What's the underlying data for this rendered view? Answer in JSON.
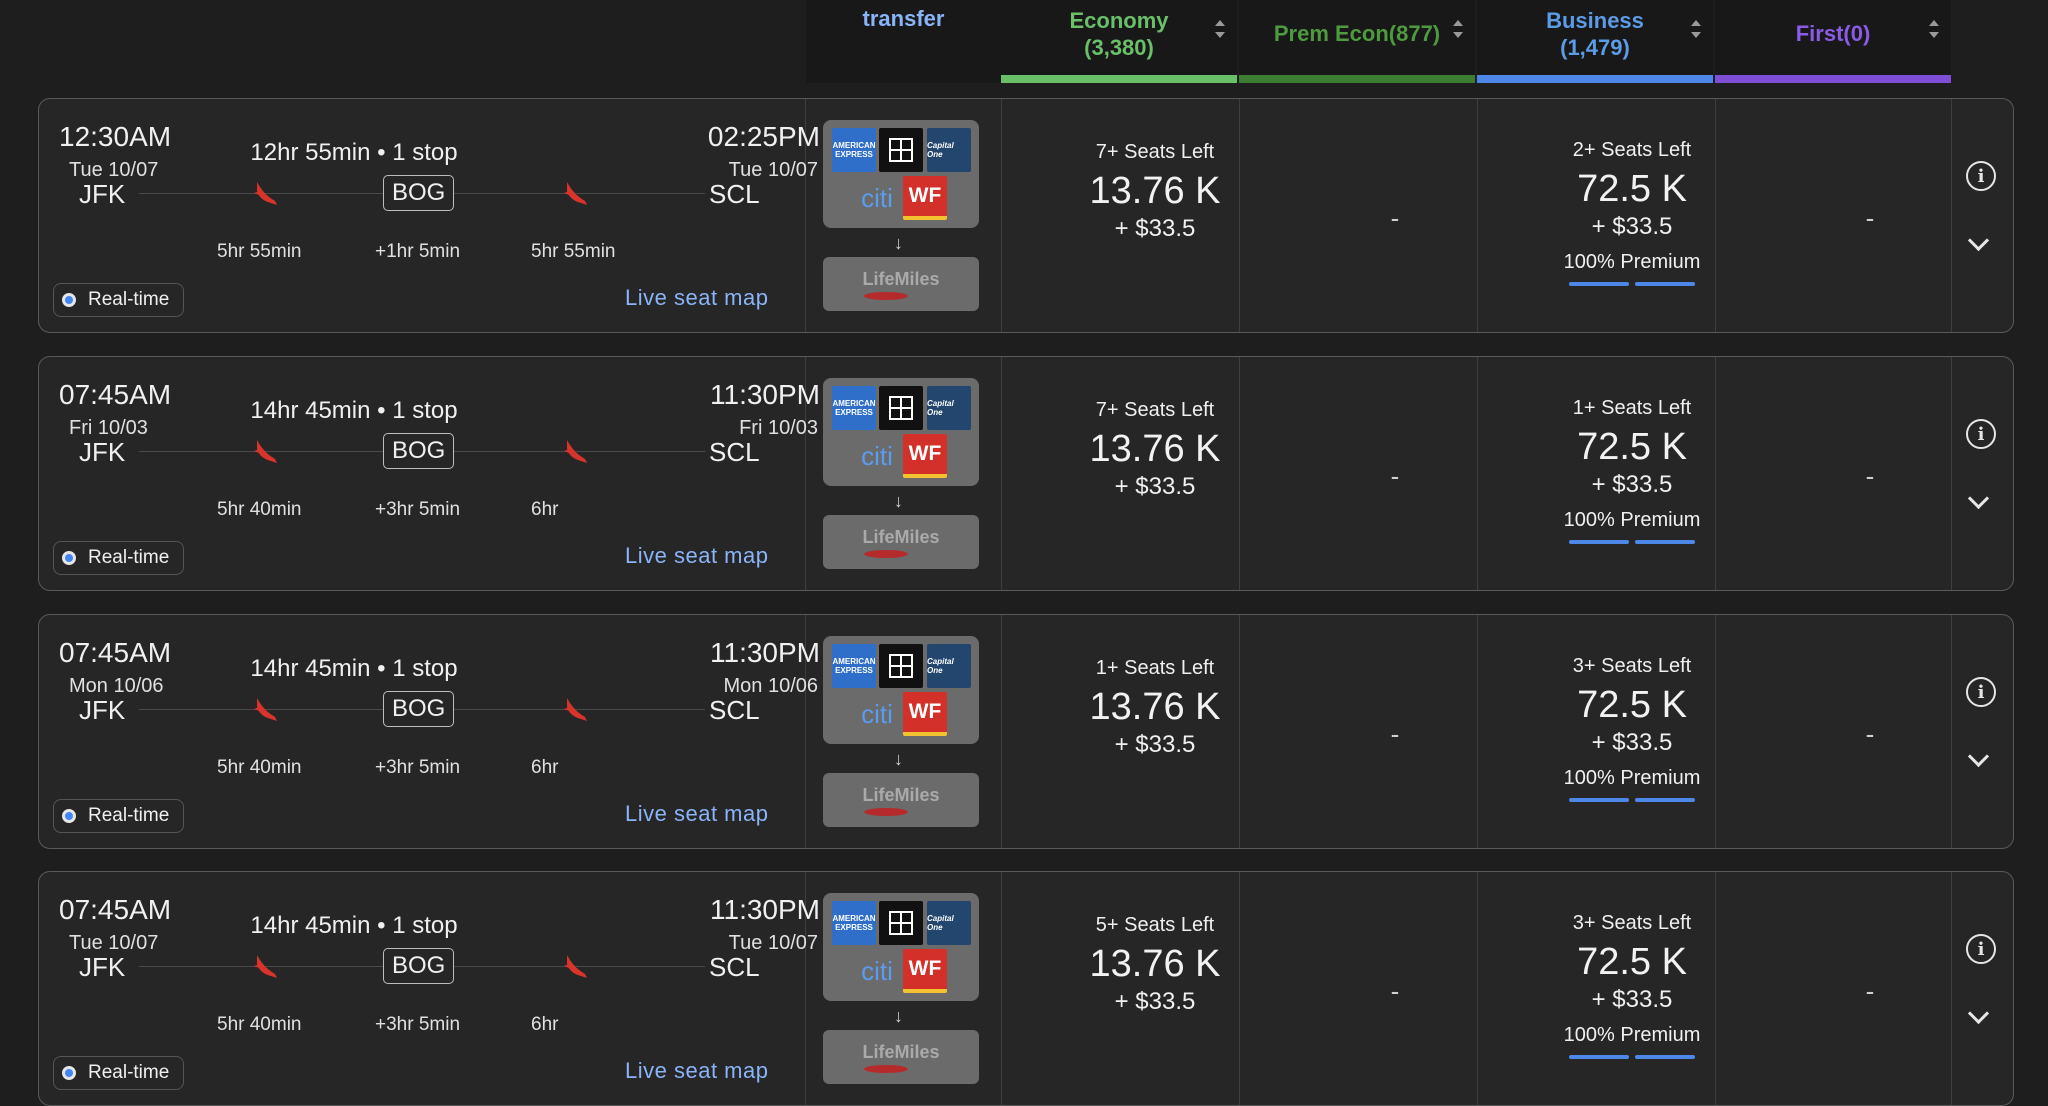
{
  "header": {
    "transfer": "transfer",
    "columns": [
      {
        "label": "Economy\n(3,380)",
        "color": "#6abf69",
        "bar": "#6abf69"
      },
      {
        "label": "Prem Econ(877)",
        "color": "#4e9a3f",
        "bar": "#3b7d31"
      },
      {
        "label": "Business\n(1,479)",
        "color": "#5c9ce6",
        "bar": "#4d88e8"
      },
      {
        "label": "First(0)",
        "color": "#8a5ce6",
        "bar": "#7e4fd6"
      }
    ]
  },
  "common": {
    "realtime": "Real-time",
    "live_seat_map": "Live seat map",
    "from": "JFK",
    "to": "SCL",
    "stop": "BOG",
    "lifemiles": "LifeMiles",
    "amex": "AMERICAN EXPRESS",
    "capital_one": "Capital One",
    "citi": "citi",
    "wf": "WF",
    "dash": "-",
    "premium": "100% Premium",
    "econ_points": "13.76 K",
    "biz_points": "72.5 K",
    "cash": "+ $33.5",
    "info": "i"
  },
  "flights": [
    {
      "dep_time": "12:30AM",
      "dep_date": "Tue 10/07",
      "arr_time": "02:25PM",
      "arr_date": "Tue 10/07",
      "duration": "12hr 55min • 1 stop",
      "seg1": "5hr 55min",
      "layover": "+1hr 5min",
      "seg2": "5hr 55min",
      "econ_seats": "7+ Seats Left",
      "biz_seats": "2+ Seats Left"
    },
    {
      "dep_time": "07:45AM",
      "dep_date": "Fri 10/03",
      "arr_time": "11:30PM",
      "arr_date": "Fri 10/03",
      "duration": "14hr 45min • 1 stop",
      "seg1": "5hr 40min",
      "layover": "+3hr 5min",
      "seg2": "6hr",
      "econ_seats": "7+ Seats Left",
      "biz_seats": "1+ Seats Left"
    },
    {
      "dep_time": "07:45AM",
      "dep_date": "Mon 10/06",
      "arr_time": "11:30PM",
      "arr_date": "Mon 10/06",
      "duration": "14hr 45min • 1 stop",
      "seg1": "5hr 40min",
      "layover": "+3hr 5min",
      "seg2": "6hr",
      "econ_seats": "1+ Seats Left",
      "biz_seats": "3+ Seats Left"
    },
    {
      "dep_time": "07:45AM",
      "dep_date": "Tue 10/07",
      "arr_time": "11:30PM",
      "arr_date": "Tue 10/07",
      "duration": "14hr 45min • 1 stop",
      "seg1": "5hr 40min",
      "layover": "+3hr 5min",
      "seg2": "6hr",
      "econ_seats": "5+ Seats Left",
      "biz_seats": "3+ Seats Left"
    }
  ]
}
